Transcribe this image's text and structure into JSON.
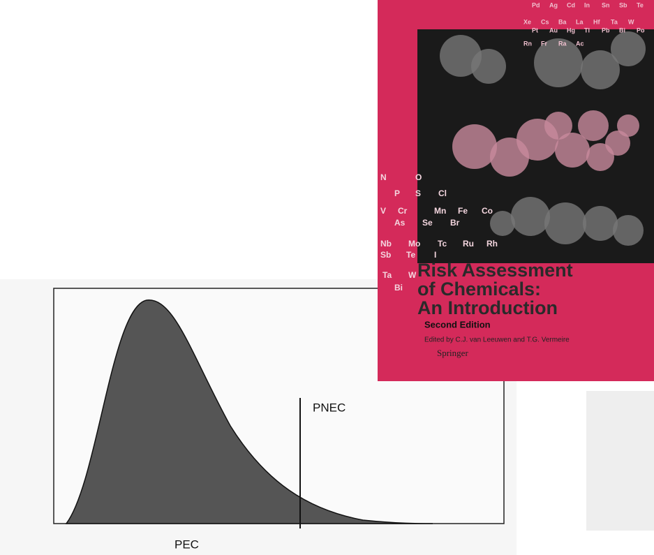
{
  "figure": {
    "threshold_label": "PNEC",
    "x_label": "PEC"
  },
  "book": {
    "title_lines": [
      "Risk Assessment",
      "of Chemicals:",
      "An Introduction"
    ],
    "edition": "Second Edition",
    "editors": "Edited by C.J. van Leeuwen and T.G. Vermeire",
    "publisher": "Springer",
    "elements": [
      "Pd",
      "Ag",
      "Cd",
      "In",
      "Sn",
      "Sb",
      "Te",
      "Xe",
      "Cs",
      "Ba",
      "La",
      "Hf",
      "Ta",
      "W",
      "Pt",
      "Au",
      "Hg",
      "Tl",
      "Pb",
      "Bi",
      "Po",
      "Rn",
      "Fr",
      "Ra",
      "Ac",
      "N",
      "O",
      "P",
      "S",
      "Cl",
      "V",
      "Cr",
      "Mn",
      "Fe",
      "Co",
      "As",
      "Se",
      "Br",
      "Nb",
      "Mo",
      "Tc",
      "Ru",
      "Rh",
      "Sb",
      "Te",
      "I",
      "Ta",
      "W",
      "Bi"
    ]
  }
}
